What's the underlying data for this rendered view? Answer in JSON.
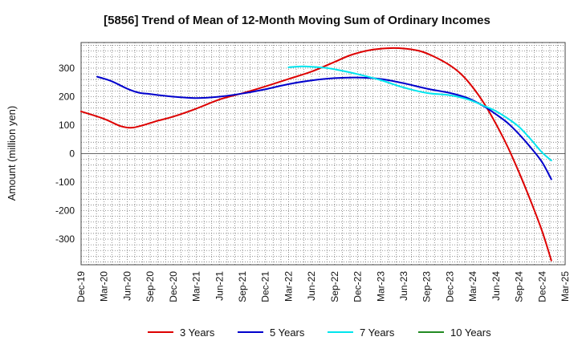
{
  "chart_data": {
    "type": "line",
    "title": "[5856]  Trend of Mean of 12-Month Moving Sum of Ordinary Incomes",
    "xlabel": "",
    "ylabel": "Amount (million yen)",
    "ylim": [
      -390,
      390
    ],
    "yticks": [
      300,
      200,
      100,
      0,
      -100,
      -200,
      -300
    ],
    "ytick_labels": [
      "300",
      "200",
      "100",
      "0",
      "-100",
      "-200",
      "-300"
    ],
    "grid": true,
    "legend_position": "bottom",
    "categories": [
      "Dec-19",
      "Mar-20",
      "Jun-20",
      "Sep-20",
      "Dec-20",
      "Mar-21",
      "Jun-21",
      "Sep-21",
      "Dec-21",
      "Mar-22",
      "Jun-22",
      "Sep-22",
      "Dec-22",
      "Mar-23",
      "Jun-23",
      "Sep-23",
      "Dec-23",
      "Mar-24",
      "Jun-24",
      "Sep-24",
      "Dec-24",
      "Mar-25"
    ],
    "series": [
      {
        "name": "3 Years",
        "color": "#dd0000",
        "points": [
          [
            0,
            148
          ],
          [
            1,
            122
          ],
          [
            1.7,
            97
          ],
          [
            2.2,
            91
          ],
          [
            2.7,
            100
          ],
          [
            3.3,
            115
          ],
          [
            4,
            130
          ],
          [
            5,
            158
          ],
          [
            6,
            190
          ],
          [
            7,
            212
          ],
          [
            8,
            236
          ],
          [
            9,
            262
          ],
          [
            10,
            288
          ],
          [
            11,
            322
          ],
          [
            11.7,
            346
          ],
          [
            12.5,
            363
          ],
          [
            13.3,
            370
          ],
          [
            14,
            369
          ],
          [
            14.7,
            360
          ],
          [
            15.3,
            341
          ],
          [
            16,
            310
          ],
          [
            16.5,
            278
          ],
          [
            17,
            232
          ],
          [
            17.5,
            174
          ],
          [
            18,
            104
          ],
          [
            18.5,
            25
          ],
          [
            19,
            -66
          ],
          [
            19.5,
            -165
          ],
          [
            20,
            -272
          ],
          [
            20.4,
            -375
          ]
        ]
      },
      {
        "name": "5 Years",
        "color": "#0000cc",
        "points": [
          [
            0.7,
            270
          ],
          [
            1.3,
            255
          ],
          [
            2,
            228
          ],
          [
            2.5,
            214
          ],
          [
            3,
            209
          ],
          [
            4,
            200
          ],
          [
            5,
            195
          ],
          [
            6,
            200
          ],
          [
            7,
            211
          ],
          [
            8,
            226
          ],
          [
            9,
            244
          ],
          [
            10,
            257
          ],
          [
            11,
            265
          ],
          [
            12,
            267
          ],
          [
            13,
            262
          ],
          [
            14,
            247
          ],
          [
            15,
            228
          ],
          [
            16,
            213
          ],
          [
            16.8,
            194
          ],
          [
            17.5,
            165
          ],
          [
            18,
            138
          ],
          [
            18.5,
            108
          ],
          [
            19,
            68
          ],
          [
            19.5,
            22
          ],
          [
            20,
            -30
          ],
          [
            20.4,
            -90
          ]
        ]
      },
      {
        "name": "7 Years",
        "color": "#00e5ee",
        "points": [
          [
            9,
            303
          ],
          [
            9.5,
            306
          ],
          [
            10,
            305
          ],
          [
            10.5,
            302
          ],
          [
            11,
            296
          ],
          [
            12,
            279
          ],
          [
            13,
            258
          ],
          [
            14,
            232
          ],
          [
            15,
            213
          ],
          [
            16,
            205
          ],
          [
            16.8,
            190
          ],
          [
            17.5,
            167
          ],
          [
            18,
            149
          ],
          [
            18.5,
            124
          ],
          [
            19,
            94
          ],
          [
            19.5,
            51
          ],
          [
            20,
            4
          ],
          [
            20.4,
            -24
          ]
        ]
      },
      {
        "name": "10 Years",
        "color": "#228b22",
        "points": []
      }
    ]
  }
}
